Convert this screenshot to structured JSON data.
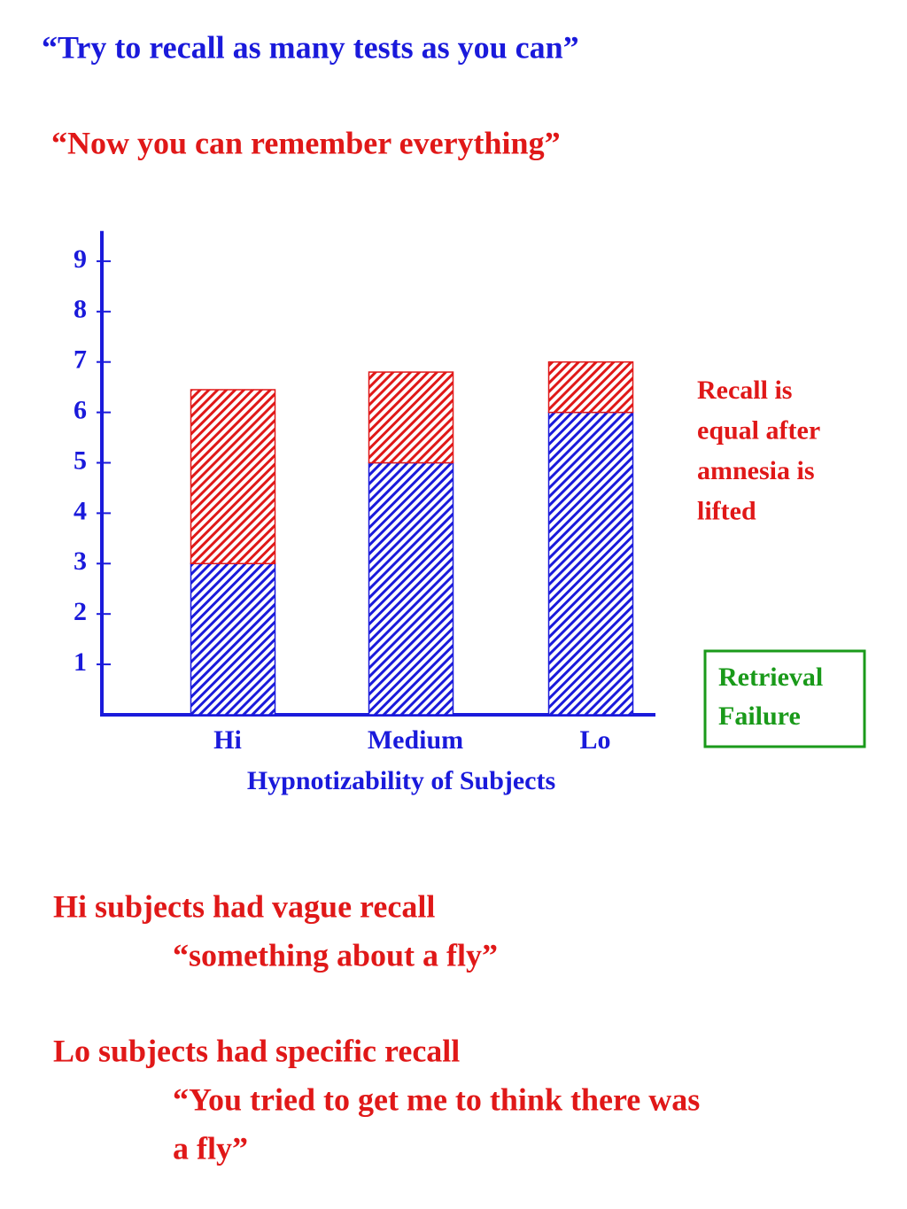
{
  "slide": {
    "heading": "“Try to recall as many tests as you can”",
    "subheading": "“Now you can remember everything”",
    "notes": [
      [
        "Hi subjects had vague recall",
        "“something about a fly”"
      ],
      [
        "Lo subjects had specific recall",
        "“You tried to get me to think there was",
        "a fly”"
      ]
    ]
  },
  "chart_data": {
    "type": "stacked_bar",
    "x_label": "Hypnotizability of Subjects",
    "categories": [
      "Hi",
      "Medium",
      "Lo"
    ],
    "series": [
      {
        "color": "#1a1adb",
        "values": [
          3,
          5,
          6
        ]
      },
      {
        "color": "#e01818",
        "values": [
          3.45,
          1.8,
          1
        ]
      }
    ],
    "ylim": [
      0,
      9.6
    ],
    "yticks": [
      1,
      2,
      3,
      4,
      5,
      6,
      7,
      8,
      9
    ],
    "axis_color": "#1a1adb",
    "annotations": [
      {
        "lines": [
          "Recall is",
          "equal after",
          "amnesia is",
          "lifted"
        ],
        "color": "#e01818"
      },
      {
        "lines": [
          "Retrieval",
          "Failure"
        ],
        "color": "#1a9a1a",
        "boxed": true
      }
    ]
  }
}
